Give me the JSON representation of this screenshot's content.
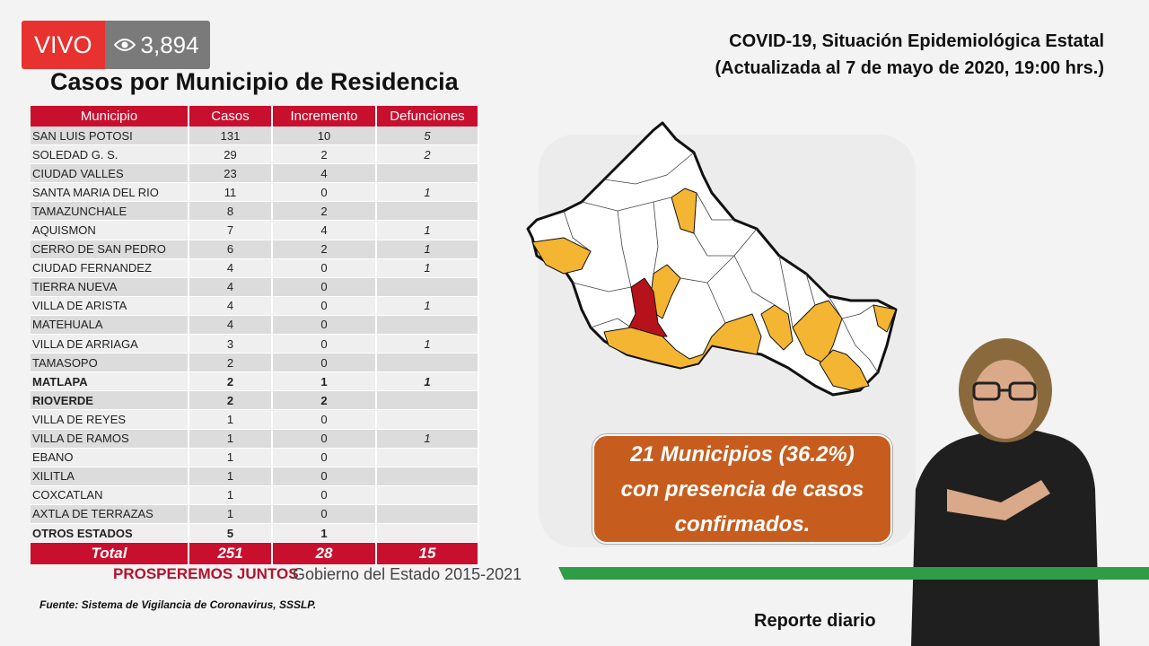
{
  "live": {
    "label": "VIVO",
    "views": "3,894"
  },
  "header": {
    "title": "COVID-19, Situación Epidemiológica Estatal",
    "subtitle": "(Actualizada al 7 de mayo de 2020, 19:00 hrs.)"
  },
  "table_title": "Casos por Municipio de Residencia",
  "table": {
    "columns": [
      "Municipio",
      "Casos",
      "Incremento",
      "Defunciones"
    ],
    "rows": [
      {
        "municipio": "SAN LUIS POTOSI",
        "casos": "131",
        "incremento": "10",
        "defunciones": "5"
      },
      {
        "municipio": "SOLEDAD G. S.",
        "casos": "29",
        "incremento": "2",
        "defunciones": "2"
      },
      {
        "municipio": "CIUDAD VALLES",
        "casos": "23",
        "incremento": "4",
        "defunciones": ""
      },
      {
        "municipio": "SANTA MARIA DEL RIO",
        "casos": "11",
        "incremento": "0",
        "defunciones": "1"
      },
      {
        "municipio": "TAMAZUNCHALE",
        "casos": "8",
        "incremento": "2",
        "defunciones": ""
      },
      {
        "municipio": "AQUISMON",
        "casos": "7",
        "incremento": "4",
        "defunciones": "1"
      },
      {
        "municipio": "CERRO DE SAN PEDRO",
        "casos": "6",
        "incremento": "2",
        "defunciones": "1"
      },
      {
        "municipio": "CIUDAD FERNANDEZ",
        "casos": "4",
        "incremento": "0",
        "defunciones": "1"
      },
      {
        "municipio": "TIERRA NUEVA",
        "casos": "4",
        "incremento": "0",
        "defunciones": ""
      },
      {
        "municipio": "VILLA DE ARISTA",
        "casos": "4",
        "incremento": "0",
        "defunciones": "1"
      },
      {
        "municipio": "MATEHUALA",
        "casos": "4",
        "incremento": "0",
        "defunciones": ""
      },
      {
        "municipio": "VILLA DE ARRIAGA",
        "casos": "3",
        "incremento": "0",
        "defunciones": "1"
      },
      {
        "municipio": "TAMASOPO",
        "casos": "2",
        "incremento": "0",
        "defunciones": ""
      },
      {
        "municipio": "MATLAPA",
        "casos": "2",
        "incremento": "1",
        "defunciones": "1",
        "bold": true
      },
      {
        "municipio": "RIOVERDE",
        "casos": "2",
        "incremento": "2",
        "defunciones": "",
        "bold": true
      },
      {
        "municipio": "VILLA DE REYES",
        "casos": "1",
        "incremento": "0",
        "defunciones": ""
      },
      {
        "municipio": "VILLA DE RAMOS",
        "casos": "1",
        "incremento": "0",
        "defunciones": "1"
      },
      {
        "municipio": "EBANO",
        "casos": "1",
        "incremento": "0",
        "defunciones": ""
      },
      {
        "municipio": "XILITLA",
        "casos": "1",
        "incremento": "0",
        "defunciones": ""
      },
      {
        "municipio": "COXCATLAN",
        "casos": "1",
        "incremento": "0",
        "defunciones": ""
      },
      {
        "municipio": "AXTLA DE TERRAZAS",
        "casos": "1",
        "incremento": "0",
        "defunciones": ""
      },
      {
        "municipio": "OTROS ESTADOS",
        "casos": "5",
        "incremento": "1",
        "defunciones": "",
        "bold": true
      }
    ],
    "total": {
      "label": "Total",
      "casos": "251",
      "incremento": "28",
      "defunciones": "15"
    }
  },
  "callout": {
    "line1": "21 Municipios (36.2%)",
    "line2": "con presencia de casos",
    "line3": "confirmados."
  },
  "footer": {
    "prosperemos": "PROSPEREMOS JUNTOS",
    "gobierno": "Gobierno del Estado 2015-2021",
    "fuente": "Fuente: Sistema de Vigilancia de Coronavirus, SSSLP.",
    "reporte": "Reporte diario"
  },
  "colors": {
    "accent_red": "#c8102e",
    "callout_orange": "#c65d1e",
    "map_yellow": "#f4b532",
    "map_dark_red": "#b5121b",
    "green_bar": "#2f9d46",
    "live_red": "#e8322f"
  },
  "icons": {
    "views": "eye-icon"
  }
}
